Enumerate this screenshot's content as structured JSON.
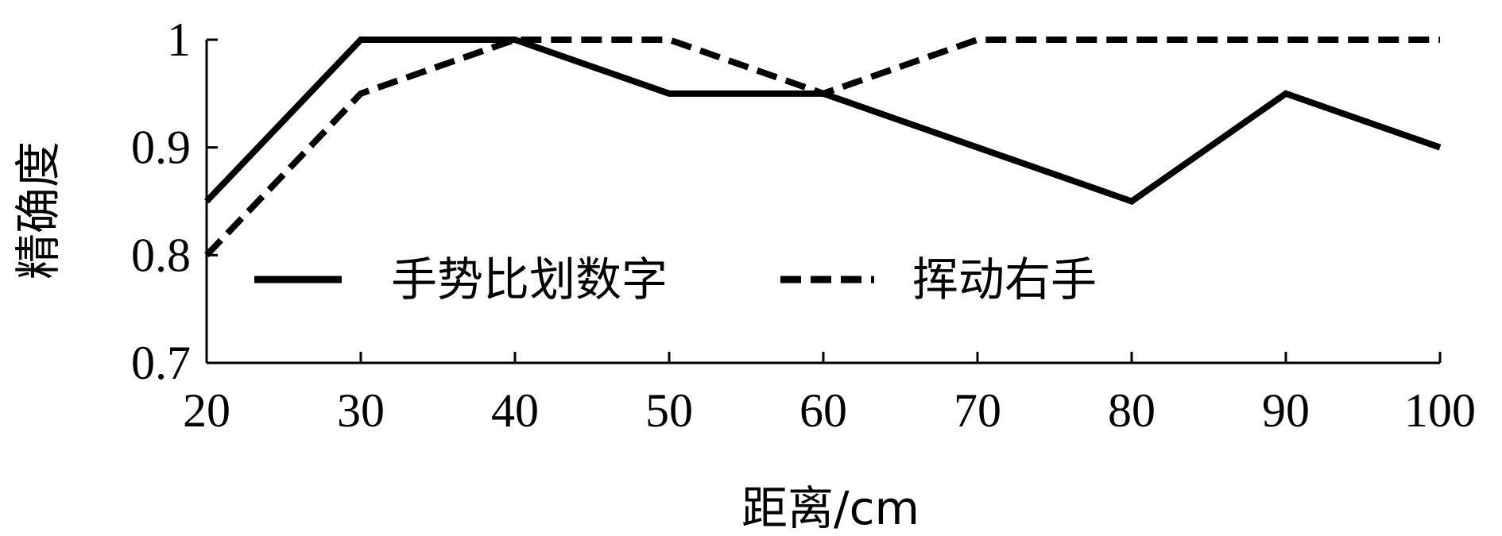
{
  "chart_data": {
    "type": "line",
    "x": [
      20,
      30,
      40,
      50,
      60,
      70,
      80,
      90,
      100
    ],
    "series": [
      {
        "name": "手势比划数字",
        "values": [
          0.85,
          1.0,
          1.0,
          0.95,
          0.95,
          0.9,
          0.85,
          0.95,
          0.9
        ],
        "dash": "solid",
        "color": "#000000"
      },
      {
        "name": "挥动右手",
        "values": [
          0.8,
          0.95,
          1.0,
          1.0,
          0.95,
          1.0,
          1.0,
          1.0,
          1.0
        ],
        "dash": "dashed",
        "color": "#000000"
      }
    ],
    "xlabel": "距离/cm",
    "ylabel": "精确度",
    "xlim": [
      20,
      100
    ],
    "ylim": [
      0.7,
      1.0
    ],
    "xticks": [
      "20",
      "30",
      "40",
      "50",
      "60",
      "70",
      "80",
      "90",
      "100"
    ],
    "yticks": [
      "0.7",
      "0.8",
      "0.9",
      "1"
    ],
    "grid": false,
    "legend_position": "inside-bottom-left"
  }
}
